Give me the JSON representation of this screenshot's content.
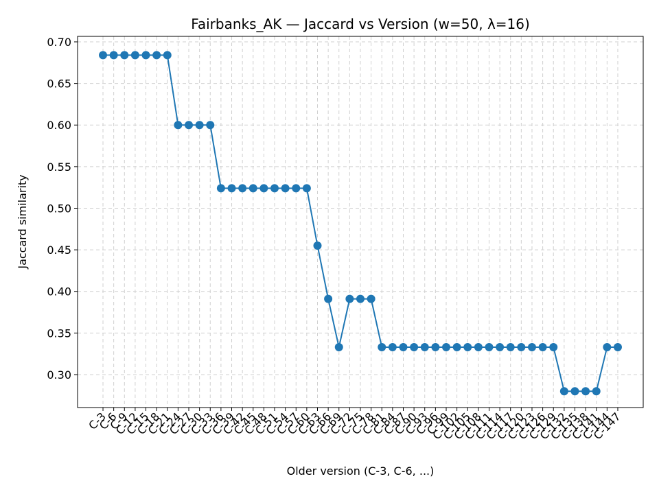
{
  "chart_data": {
    "type": "line",
    "title": "Fairbanks_AK — Jaccard vs Version (w=50, λ=16)",
    "x_label": "Older version (C-3, C-6, ...)",
    "y_label": "Jaccard similarity",
    "categories": [
      "C-3",
      "C-6",
      "C-9",
      "C-12",
      "C-15",
      "C-18",
      "C-21",
      "C-24",
      "C-27",
      "C-30",
      "C-33",
      "C-36",
      "C-39",
      "C-42",
      "C-45",
      "C-48",
      "C-51",
      "C-54",
      "C-57",
      "C-60",
      "C-63",
      "C-66",
      "C-69",
      "C-72",
      "C-75",
      "C-78",
      "C-81",
      "C-84",
      "C-87",
      "C-90",
      "C-93",
      "C-96",
      "C-99",
      "C-102",
      "C-105",
      "C-108",
      "C-111",
      "C-114",
      "C-117",
      "C-120",
      "C-123",
      "C-126",
      "C-129",
      "C-132",
      "C-135",
      "C-138",
      "C-141",
      "C-144",
      "C-147"
    ],
    "series": [
      {
        "name": "Jaccard similarity",
        "color": "#1f77b4",
        "values": [
          0.684,
          0.684,
          0.684,
          0.684,
          0.684,
          0.684,
          0.684,
          0.6,
          0.6,
          0.6,
          0.6,
          0.524,
          0.524,
          0.524,
          0.524,
          0.524,
          0.524,
          0.524,
          0.524,
          0.524,
          0.455,
          0.391,
          0.333,
          0.391,
          0.391,
          0.391,
          0.333,
          0.333,
          0.333,
          0.333,
          0.333,
          0.333,
          0.333,
          0.333,
          0.333,
          0.333,
          0.333,
          0.333,
          0.333,
          0.333,
          0.333,
          0.333,
          0.333,
          0.28,
          0.28,
          0.28,
          0.28,
          0.333,
          0.333
        ]
      }
    ],
    "ylim": [
      0.2604,
      0.7066
    ],
    "yticks": [
      {
        "value": 0.3,
        "label": "0.30"
      },
      0.35,
      {
        "value": 0.4,
        "label": "0.40"
      },
      0.45,
      {
        "value": 0.5,
        "label": "0.50"
      },
      0.55,
      {
        "value": 0.6,
        "label": "0.60"
      },
      0.65,
      {
        "value": 0.7,
        "label": "0.70"
      }
    ],
    "grid": true
  }
}
